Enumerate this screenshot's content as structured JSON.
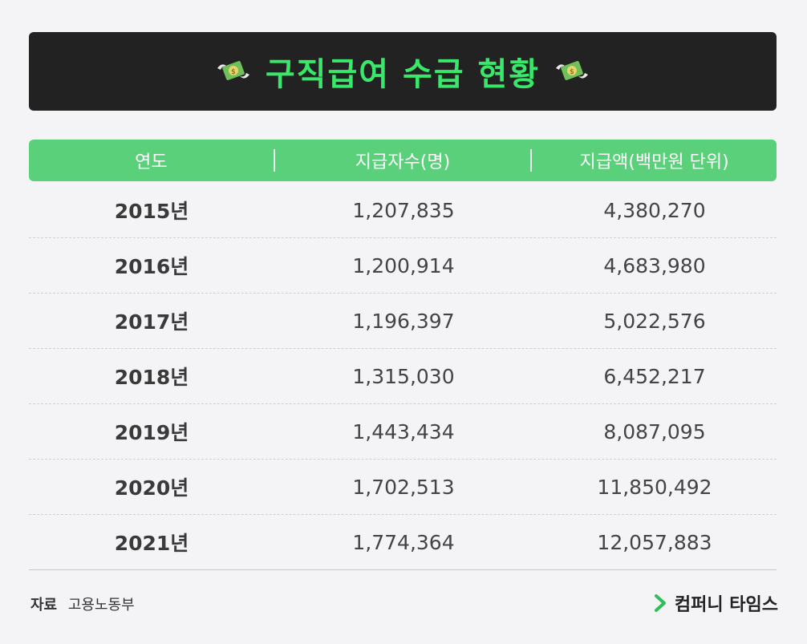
{
  "title": "구직급여 수급 현황",
  "title_icon": "flying-money-icon",
  "colors": {
    "accent_green": "#39e86a",
    "header_green": "#5bd07a",
    "title_bg": "#222222"
  },
  "table": {
    "headers": [
      "연도",
      "지급자수(명)",
      "지급액(백만원 단위)"
    ],
    "rows": [
      {
        "year": "2015년",
        "count": "1,207,835",
        "amount": "4,380,270"
      },
      {
        "year": "2016년",
        "count": "1,200,914",
        "amount": "4,683,980"
      },
      {
        "year": "2017년",
        "count": "1,196,397",
        "amount": "5,022,576"
      },
      {
        "year": "2018년",
        "count": "1,315,030",
        "amount": "6,452,217"
      },
      {
        "year": "2019년",
        "count": "1,443,434",
        "amount": "8,087,095"
      },
      {
        "year": "2020년",
        "count": "1,702,513",
        "amount": "11,850,492"
      },
      {
        "year": "2021년",
        "count": "1,774,364",
        "amount": "12,057,883"
      }
    ]
  },
  "footer": {
    "source_label": "자료",
    "source_value": "고용노동부",
    "brand": "컴퍼니 타임스",
    "brand_icon": "chevron-right-icon"
  }
}
